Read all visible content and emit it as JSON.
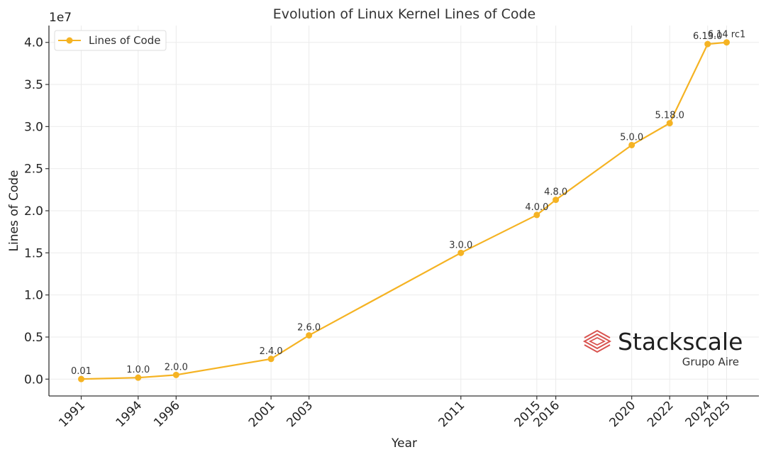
{
  "chart_data": {
    "type": "line",
    "title": "Evolution of Linux Kernel Lines of Code",
    "xlabel": "Year",
    "ylabel": "Lines of Code",
    "y_offset_label": "1e7",
    "xlim": [
      1989.3,
      2026.7
    ],
    "ylim": [
      -0.2,
      4.2
    ],
    "y_scale_factor": 10000000,
    "yticks": [
      0.0,
      0.5,
      1.0,
      1.5,
      2.0,
      2.5,
      3.0,
      3.5,
      4.0
    ],
    "ytick_labels": [
      "0.0",
      "0.5",
      "1.0",
      "1.5",
      "2.0",
      "2.5",
      "3.0",
      "3.5",
      "4.0"
    ],
    "xticks": [
      1991,
      1994,
      1996,
      2001,
      2003,
      2011,
      2015,
      2016,
      2020,
      2022,
      2024,
      2025
    ],
    "xtick_labels": [
      "1991",
      "1994",
      "1996",
      "2001",
      "2003",
      "2011",
      "2015",
      "2016",
      "2020",
      "2022",
      "2024",
      "2025"
    ],
    "grid": true,
    "legend": {
      "position": "top-left",
      "entries": [
        "Lines of Code"
      ]
    },
    "series": [
      {
        "name": "Lines of Code",
        "color": "#f5b323",
        "x": [
          1991,
          1994,
          1996,
          2001,
          2003,
          2011,
          2015,
          2016,
          2020,
          2022,
          2024,
          2025
        ],
        "values": [
          10000,
          176000,
          500000,
          2400000,
          5200000,
          15000000,
          19500000,
          21300000,
          27800000,
          30400000,
          39800000,
          40000000
        ],
        "annotations": [
          "0.01",
          "1.0.0",
          "2.0.0",
          "2.4.0",
          "2.6.0",
          "3.0.0",
          "4.0.0",
          "4.8.0",
          "5.0.0",
          "5.18.0",
          "6.13.0",
          "6.14 rc1"
        ]
      }
    ]
  },
  "watermark": {
    "brand": "Stackscale",
    "subtitle": "Grupo Aire",
    "logo_icon": "stacked-layers-icon",
    "logo_color": "#d9534f"
  }
}
